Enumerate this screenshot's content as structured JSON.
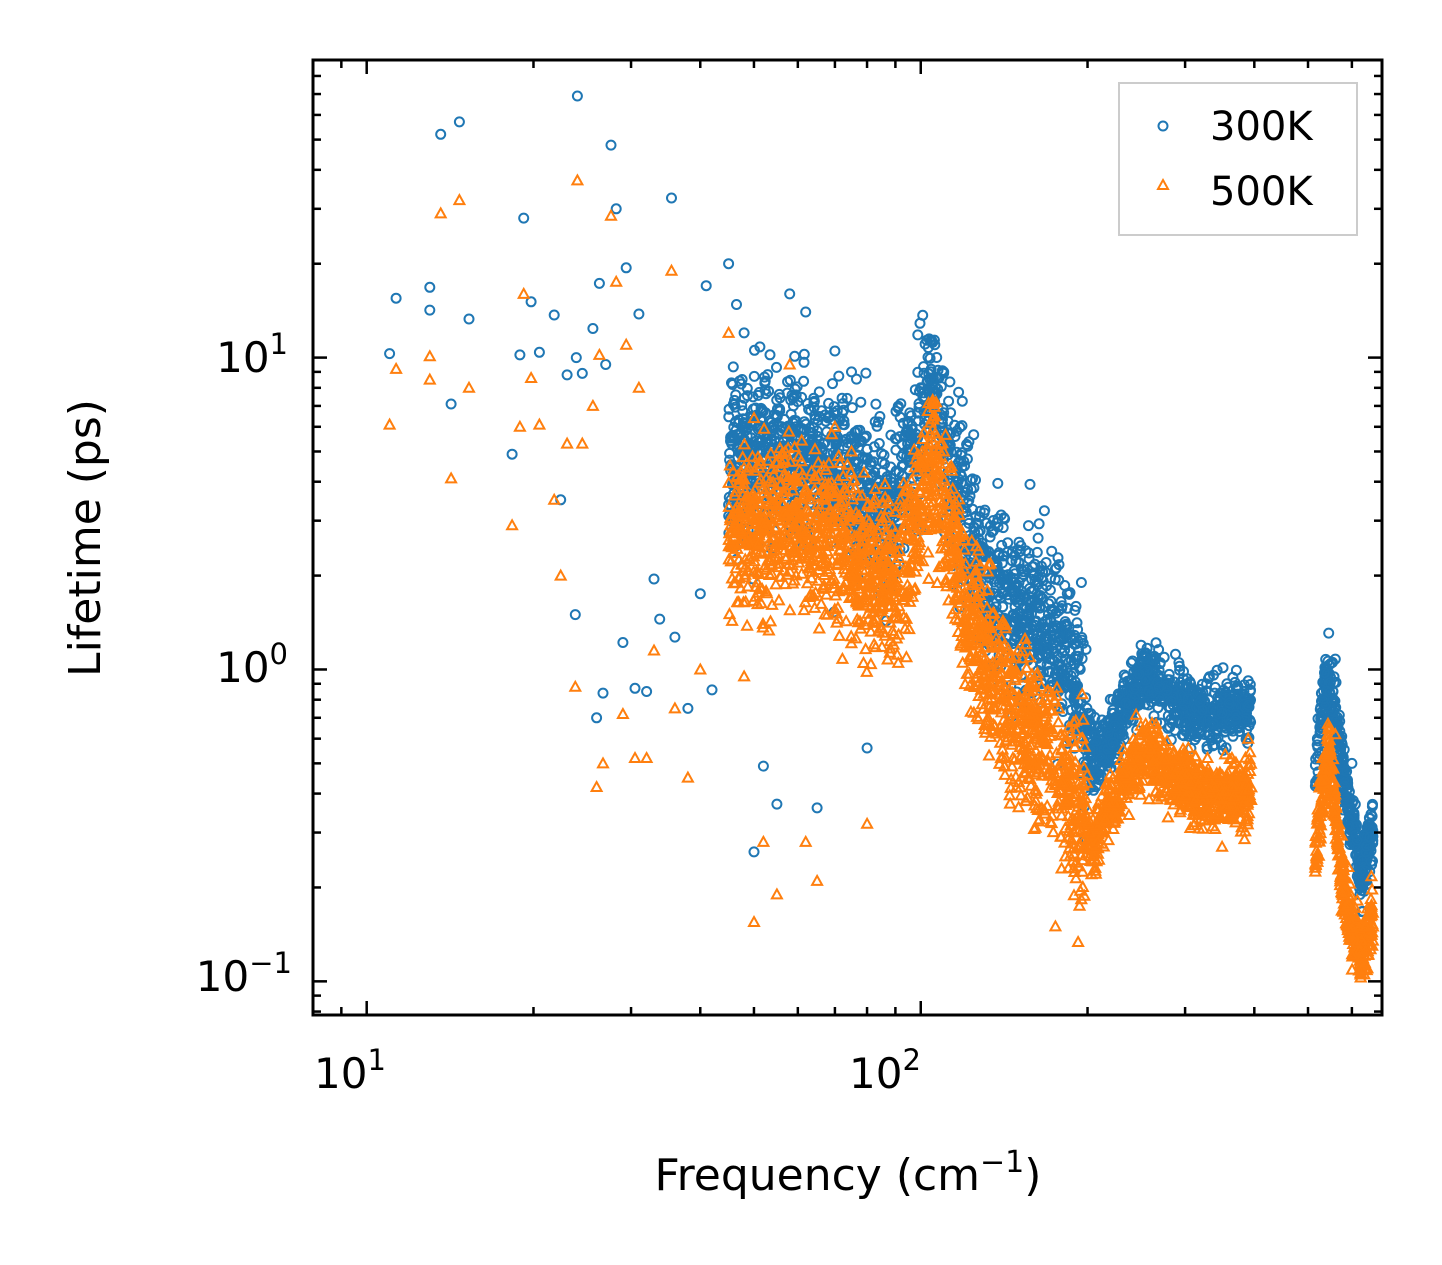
{
  "chart_data": {
    "type": "scatter",
    "title": "",
    "xlabel": "Frequency (cm",
    "xlabel_sup": "−1",
    "xlabel_close": ")",
    "ylabel": "Lifetime (ps)",
    "xscale": "log",
    "yscale": "log",
    "xlim": [
      8.0,
      680.0
    ],
    "ylim": [
      0.078,
      90.0
    ],
    "x_ticks": [
      {
        "value": 10,
        "base": "10",
        "exp": "1"
      },
      {
        "value": 100,
        "base": "10",
        "exp": "2"
      }
    ],
    "y_ticks": [
      {
        "value": 0.1,
        "base": "10",
        "exp": "−1"
      },
      {
        "value": 1,
        "base": "10",
        "exp": "0"
      },
      {
        "value": 10,
        "base": "10",
        "exp": "1"
      }
    ],
    "legend_position": "top-right",
    "series": [
      {
        "name": "300K",
        "marker": "circle",
        "color": "#1f77b4",
        "sample_points": [
          [
            11.0,
            10.3
          ],
          [
            11.3,
            15.5
          ],
          [
            13.0,
            16.8
          ],
          [
            13.0,
            14.2
          ],
          [
            13.6,
            52.0
          ],
          [
            14.2,
            7.1
          ],
          [
            14.7,
            57.0
          ],
          [
            15.3,
            13.3
          ],
          [
            18.3,
            4.9
          ],
          [
            18.9,
            10.2
          ],
          [
            19.2,
            28.0
          ],
          [
            19.8,
            15.1
          ],
          [
            20.5,
            10.4
          ],
          [
            21.8,
            13.7
          ],
          [
            22.4,
            3.5
          ],
          [
            23.0,
            8.8
          ],
          [
            23.8,
            1.5
          ],
          [
            23.9,
            10.0
          ],
          [
            24.0,
            69.0
          ],
          [
            24.5,
            8.9
          ],
          [
            25.6,
            12.4
          ],
          [
            26.0,
            0.7
          ],
          [
            26.3,
            17.3
          ],
          [
            26.7,
            0.84
          ],
          [
            27.0,
            9.5
          ],
          [
            27.6,
            48.0
          ],
          [
            28.2,
            30.0
          ],
          [
            29.0,
            1.22
          ],
          [
            29.4,
            19.4
          ],
          [
            30.5,
            0.87
          ],
          [
            31.0,
            13.8
          ],
          [
            32.0,
            0.85
          ],
          [
            33.0,
            1.95
          ],
          [
            33.8,
            1.45
          ],
          [
            35.5,
            32.5
          ],
          [
            36.0,
            1.27
          ],
          [
            38.0,
            0.75
          ],
          [
            40.0,
            1.75
          ],
          [
            41.0,
            17.0
          ],
          [
            42.0,
            0.86
          ],
          [
            45.0,
            20.0
          ],
          [
            46.5,
            14.8
          ],
          [
            48.0,
            12.0
          ],
          [
            50.0,
            0.26
          ],
          [
            52.0,
            0.49
          ],
          [
            55.0,
            0.37
          ],
          [
            58.0,
            16.0
          ],
          [
            62.0,
            14.0
          ],
          [
            65.0,
            0.36
          ],
          [
            70.0,
            10.5
          ],
          [
            75.0,
            9.0
          ],
          [
            80.0,
            0.56
          ],
          [
            90.0,
            5.5
          ],
          [
            100.0,
            8.0
          ],
          [
            106.0,
            11.0
          ],
          [
            110.0,
            9.0
          ],
          [
            120.0,
            4.5
          ],
          [
            140.0,
            2.5
          ],
          [
            160.0,
            2.0
          ],
          [
            180.0,
            1.6
          ],
          [
            195.0,
            1.9
          ],
          [
            210.0,
            0.55
          ],
          [
            240.0,
            1.05
          ],
          [
            260.0,
            1.1
          ],
          [
            290.0,
            0.85
          ],
          [
            320.0,
            0.8
          ],
          [
            360.0,
            0.75
          ],
          [
            390.0,
            0.92
          ],
          [
            520.0,
            0.6
          ],
          [
            560.0,
            1.08
          ],
          [
            600.0,
            0.5
          ],
          [
            640.0,
            0.3
          ]
        ]
      },
      {
        "name": "500K",
        "marker": "triangle",
        "color": "#ff7f0e",
        "sample_points": [
          [
            11.0,
            6.1
          ],
          [
            11.3,
            9.2
          ],
          [
            13.0,
            10.1
          ],
          [
            13.0,
            8.5
          ],
          [
            13.6,
            29.0
          ],
          [
            14.2,
            4.1
          ],
          [
            14.7,
            32.0
          ],
          [
            15.3,
            8.0
          ],
          [
            18.3,
            2.9
          ],
          [
            18.9,
            6.0
          ],
          [
            19.2,
            16.0
          ],
          [
            19.8,
            8.6
          ],
          [
            20.5,
            6.1
          ],
          [
            21.8,
            3.5
          ],
          [
            22.4,
            2.0
          ],
          [
            23.0,
            5.3
          ],
          [
            23.8,
            0.88
          ],
          [
            24.0,
            37.0
          ],
          [
            24.5,
            5.3
          ],
          [
            25.6,
            7.0
          ],
          [
            26.0,
            0.42
          ],
          [
            26.3,
            10.2
          ],
          [
            26.7,
            0.5
          ],
          [
            27.6,
            28.5
          ],
          [
            28.2,
            17.5
          ],
          [
            29.0,
            0.72
          ],
          [
            29.4,
            11.0
          ],
          [
            30.5,
            0.52
          ],
          [
            31.0,
            8.0
          ],
          [
            32.0,
            0.52
          ],
          [
            33.0,
            1.15
          ],
          [
            35.5,
            19.0
          ],
          [
            36.0,
            0.75
          ],
          [
            38.0,
            0.45
          ],
          [
            40.0,
            1.0
          ],
          [
            45.0,
            12.0
          ],
          [
            48.0,
            0.95
          ],
          [
            50.0,
            0.155
          ],
          [
            52.0,
            0.28
          ],
          [
            55.0,
            0.19
          ],
          [
            58.0,
            9.5
          ],
          [
            62.0,
            0.28
          ],
          [
            65.0,
            0.21
          ],
          [
            70.0,
            6.0
          ],
          [
            75.0,
            5.0
          ],
          [
            80.0,
            0.32
          ],
          [
            90.0,
            3.2
          ],
          [
            100.0,
            4.5
          ],
          [
            106.0,
            6.5
          ],
          [
            110.0,
            5.0
          ],
          [
            120.0,
            2.6
          ],
          [
            140.0,
            1.4
          ],
          [
            160.0,
            0.9
          ],
          [
            175.0,
            0.15
          ],
          [
            195.0,
            0.6
          ],
          [
            210.0,
            0.32
          ],
          [
            240.0,
            0.56
          ],
          [
            260.0,
            0.65
          ],
          [
            290.0,
            0.5
          ],
          [
            320.0,
            0.45
          ],
          [
            360.0,
            0.42
          ],
          [
            390.0,
            0.6
          ],
          [
            520.0,
            0.33
          ],
          [
            560.0,
            0.62
          ],
          [
            600.0,
            0.15
          ],
          [
            640.0,
            0.11
          ]
        ]
      }
    ]
  }
}
